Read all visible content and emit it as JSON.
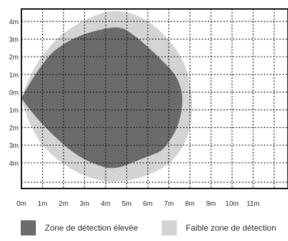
{
  "y_labels": [
    "4m",
    "3m",
    "2m",
    "1m",
    "0m",
    "1m",
    "2m",
    "3m",
    "4m"
  ],
  "x_labels": [
    "0m",
    "1m",
    "2m",
    "3m",
    "4m",
    "5m",
    "6m",
    "7m",
    "8m",
    "9m",
    "10m",
    "11m"
  ],
  "zones": [
    {
      "id": "high",
      "label": "Zone de détection élevée",
      "color": "#6b6b6b"
    },
    {
      "id": "low",
      "label": "Faible zone de détection",
      "color": "#d4d4d4"
    }
  ],
  "colors": {
    "grid_line": "#1a1a1a",
    "frame": "#111111",
    "text": "#2a2a2a",
    "background": "#ffffff"
  }
}
